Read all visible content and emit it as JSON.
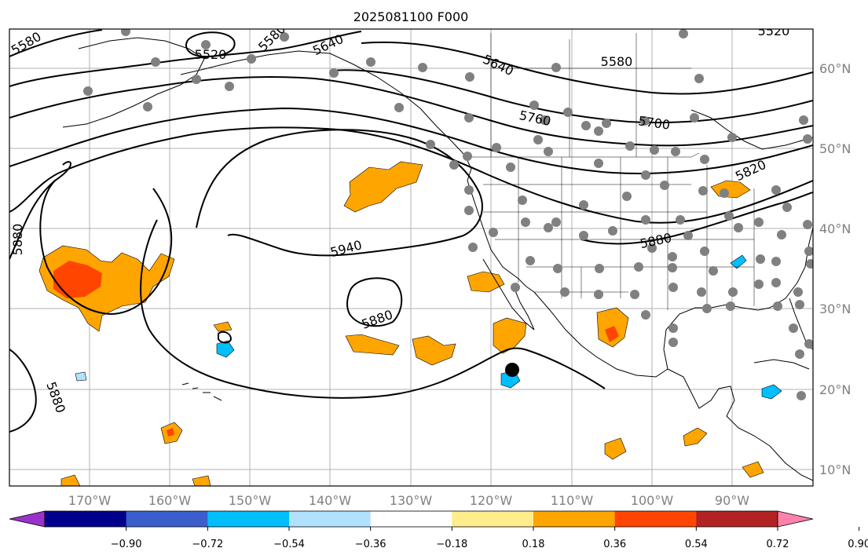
{
  "title": "2025081100 F000",
  "lon_labels": [
    "170°W",
    "160°W",
    "150°W",
    "140°W",
    "130°W",
    "120°W",
    "110°W",
    "100°W",
    "90°W"
  ],
  "lat_labels": [
    "60°N",
    "50°N",
    "40°N",
    "30°N",
    "20°N",
    "10°N"
  ],
  "contour_labels": [
    "5520",
    "5580",
    "5640",
    "5640",
    "5580",
    "5760",
    "5700",
    "5820",
    "5880",
    "5940",
    "5880",
    "5880",
    "5880",
    "5580",
    "5520"
  ],
  "colorbar": {
    "tick_labels": [
      "−0.90",
      "−0.72",
      "−0.54",
      "−0.36",
      "−0.18",
      "0.18",
      "0.36",
      "0.54",
      "0.72",
      "0.90"
    ],
    "colors": [
      "#9932cc",
      "#00008b",
      "#3a5fcd",
      "#00bfff",
      "#b0e2ff",
      "#ffffff",
      "#ffec8b",
      "#ffa500",
      "#ff4500",
      "#b22222",
      "#ff82ab"
    ]
  },
  "colors": {
    "contour": "#000000",
    "coast": "#000000",
    "station": "#808080",
    "grid": "#b0b0b0",
    "orange": "#ffa500",
    "red": "#ff4500",
    "cyan": "#00bfff",
    "light_blue": "#b0e2ff"
  }
}
